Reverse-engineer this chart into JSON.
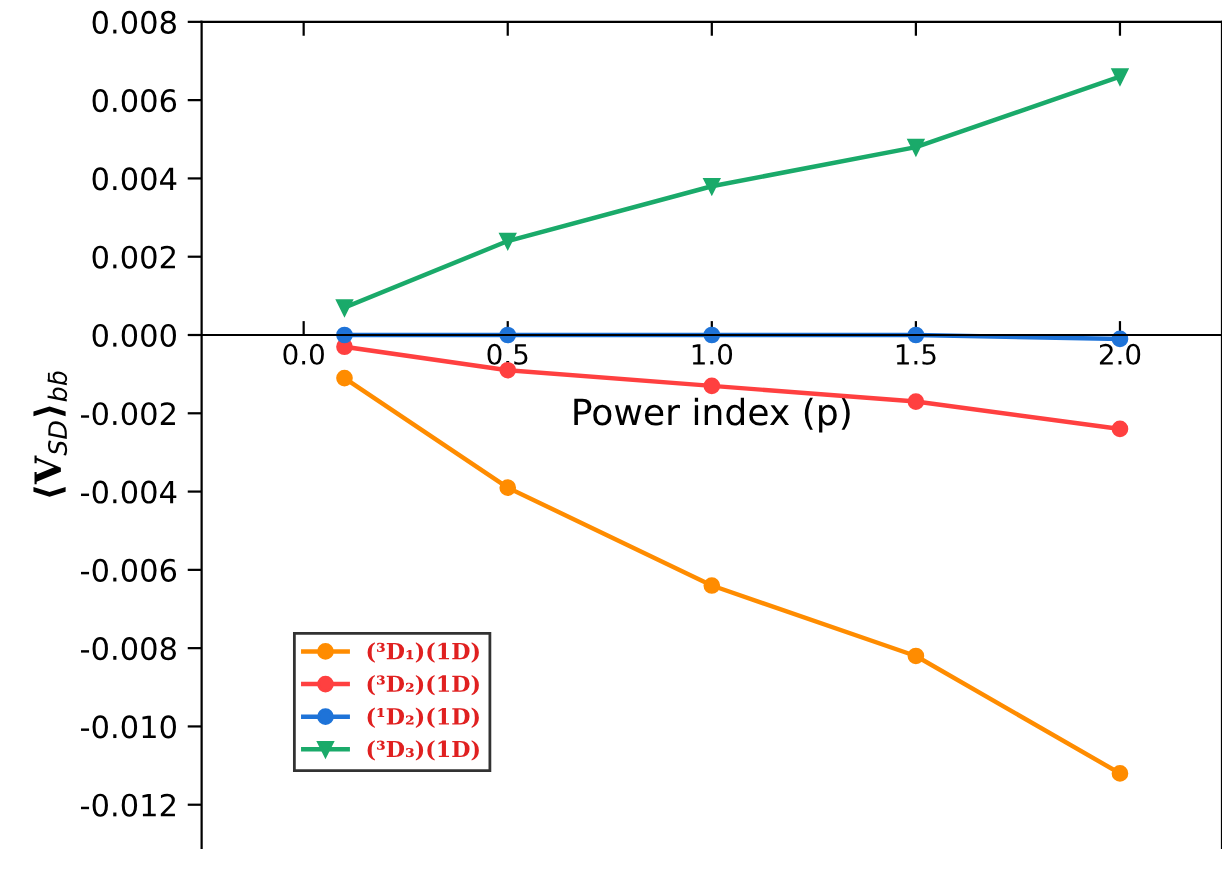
{
  "chart_data": {
    "type": "line",
    "xlabel": "Power index (p)",
    "ylabel": "⟨V$_{SD}$⟩$_{bb̄}$",
    "x": [
      0.1,
      0.5,
      1.0,
      1.5,
      2.0
    ],
    "xlim": [
      -0.25,
      2.25
    ],
    "xticks": [
      {
        "value": 0.0,
        "label": "0.0"
      },
      0.5,
      {
        "value": 1.0,
        "label": "1.0"
      },
      1.5,
      {
        "value": 2.0,
        "label": "2.0"
      }
    ],
    "ylim": [
      -0.0131,
      0.008
    ],
    "yticks": [
      {
        "value": -0.012,
        "label": "-0.012"
      },
      {
        "value": -0.01,
        "label": "-0.010"
      },
      {
        "value": -0.008,
        "label": "-0.008"
      },
      {
        "value": -0.006,
        "label": "-0.006"
      },
      {
        "value": -0.004,
        "label": "-0.004"
      },
      {
        "value": -0.002,
        "label": "-0.002"
      },
      {
        "value": 0.0,
        "label": "0.000"
      },
      {
        "value": 0.002,
        "label": "0.002"
      },
      {
        "value": 0.004,
        "label": "0.004"
      },
      {
        "value": 0.006,
        "label": "0.006"
      },
      {
        "value": 0.008,
        "label": "0.008"
      }
    ],
    "grid": false,
    "legend": "bottom left",
    "line_style": "solid",
    "series": [
      {
        "name": "(³D₁)(1D)",
        "color": "#ff8c00",
        "marker": "circle",
        "values": [
          -0.0011,
          -0.0039,
          -0.0064,
          -0.0082,
          -0.0112
        ]
      },
      {
        "name": "(³D₂)(1D)",
        "color": "#ff4040",
        "marker": "circle",
        "values": [
          -0.0003,
          -0.0009,
          -0.0013,
          -0.0017,
          -0.0024
        ]
      },
      {
        "name": "(¹D₂)(1D)",
        "color": "#1e73d8",
        "marker": "circle",
        "values": [
          0.0,
          0.0,
          0.0,
          0.0,
          -0.0001
        ]
      },
      {
        "name": "(³D₃)(1D)",
        "color": "#1aaa6a",
        "marker": "triangle",
        "values": [
          0.0007,
          0.0024,
          0.0038,
          0.0048,
          0.0066
        ]
      }
    ]
  }
}
